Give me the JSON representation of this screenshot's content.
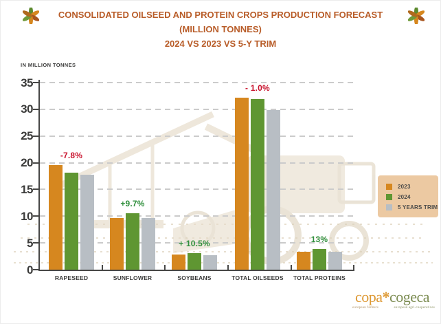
{
  "header": {
    "title_line1": "CONSOLIDATED OILSEED AND PROTEIN CROPS PRODUCTION FORECAST (MILLION TONNES)",
    "title_line2": "2024 VS 2023 VS 5-Y TRIM",
    "title_color": "#b85c28"
  },
  "axis_note": "IN MILLION TONNES",
  "chart_data": {
    "type": "bar",
    "title": "CONSOLIDATED OILSEED AND PROTEIN CROPS PRODUCTION FORECAST (MILLION TONNES) 2024 VS 2023 VS 5-Y TRIM",
    "ylabel": "IN MILLION TONNES",
    "ylim": [
      0,
      35
    ],
    "yticks": [
      0,
      5,
      10,
      15,
      20,
      25,
      30,
      35
    ],
    "grid": "horizontal-dashed",
    "legend_position": "right",
    "categories": [
      "RAPESEED",
      "SUNFLOWER",
      "SOYBEANS",
      "TOTAL OILSEEDS",
      "TOTAL PROTEINS"
    ],
    "series": [
      {
        "name": "2023",
        "color": "#d6871f",
        "values": [
          19.6,
          9.7,
          2.8,
          32.2,
          3.3
        ]
      },
      {
        "name": "2024",
        "color": "#5f9632",
        "values": [
          18.1,
          10.6,
          3.1,
          31.9,
          3.8
        ]
      },
      {
        "name": "5 YEARS TRIM",
        "color": "#b8bec4",
        "values": [
          17.8,
          9.7,
          2.7,
          29.9,
          3.3
        ]
      }
    ],
    "annotations": [
      {
        "category": "RAPESEED",
        "label": "-7.8%",
        "color": "#c9132d"
      },
      {
        "category": "SUNFLOWER",
        "label": "+9.7%",
        "color": "#2f8f3c"
      },
      {
        "category": "SOYBEANS",
        "label": "+ 10.5%",
        "color": "#2f8f3c"
      },
      {
        "category": "TOTAL OILSEEDS",
        "label": "- 1.0%",
        "color": "#c9132d"
      },
      {
        "category": "TOTAL PROTEINS",
        "label": "13%",
        "color": "#2f8f3c"
      }
    ]
  },
  "legend": {
    "background": "#ecc9a2",
    "items": [
      "2023",
      "2024",
      "5 YEARS TRIM"
    ]
  },
  "logo": {
    "copa": "copa",
    "asterisk": "*",
    "cogeca": "cogeca",
    "sub_copa": "european farmers",
    "sub_cogeca": "european agri-cooperatives"
  }
}
